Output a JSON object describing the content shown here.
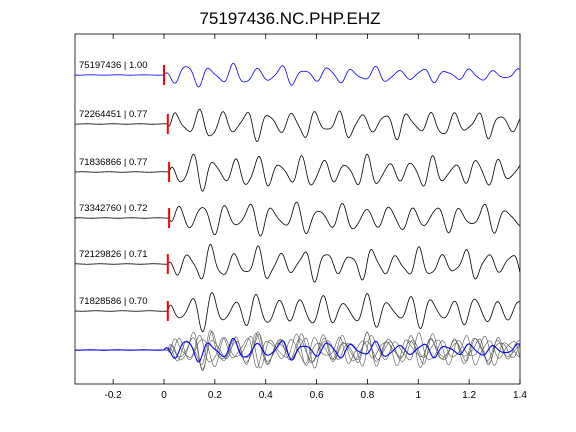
{
  "chart_data": {
    "type": "line",
    "title": "75197436.NC.PHP.EHZ",
    "xlabel": "",
    "ylabel": "",
    "xlim": [
      -0.35,
      1.4
    ],
    "xticks": [
      -0.2,
      0,
      0.2,
      0.4,
      0.6,
      0.8,
      1,
      1.2,
      1.4
    ],
    "xtick_labels": [
      "-0.2",
      "0",
      "0.2",
      "0.4",
      "0.6",
      "0.8",
      "1",
      "1.2",
      "1.4"
    ],
    "grid": false,
    "colors": {
      "reference": "#0000ff",
      "match": "#000000",
      "pick": "#ff0000",
      "stack_gray": "#555555"
    },
    "series": [
      {
        "name": "75197436 | 1.00",
        "pick_time": 0.0,
        "color": "#0000ff"
      },
      {
        "name": "72264451 | 0.77",
        "pick_time": 0.015,
        "color": "#000000"
      },
      {
        "name": "71836866 | 0.77",
        "pick_time": 0.02,
        "color": "#000000"
      },
      {
        "name": "73342760 | 0.72",
        "pick_time": 0.02,
        "color": "#000000"
      },
      {
        "name": "72129826 | 0.71",
        "pick_time": 0.015,
        "color": "#000000"
      },
      {
        "name": "71828586 | 0.70",
        "pick_time": 0.015,
        "color": "#000000"
      }
    ],
    "overlay": {
      "description_series": "all traces overlaid, reference in blue"
    }
  }
}
